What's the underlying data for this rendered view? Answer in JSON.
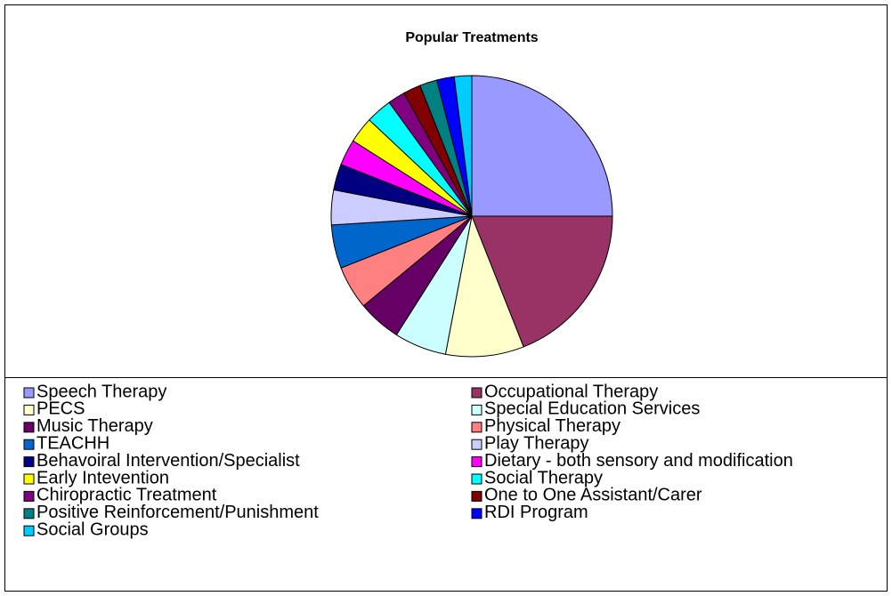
{
  "chart_data": {
    "type": "pie",
    "title": "Popular Treatments",
    "categories": [
      "Speech Therapy",
      "Occupational Therapy",
      "PECS",
      "Special Education Services",
      "Music Therapy",
      "Physical Therapy",
      "TEACHH",
      "Play Therapy",
      "Behavoiral Intervention/Specialist",
      "Dietary - both sensory and modification",
      "Early Intevention",
      "Social Therapy",
      "Chiropractic Treatment",
      "One to One Assistant/Carer",
      "Positive Reinforcement/Punishment",
      "RDI Program",
      "Social Groups"
    ],
    "values": [
      25,
      19,
      9,
      6,
      5,
      5,
      5,
      4,
      3,
      3,
      3,
      3,
      2,
      2,
      2,
      2,
      2
    ],
    "colors": [
      "#9999ff",
      "#993366",
      "#ffffcc",
      "#ccffff",
      "#660066",
      "#ff8080",
      "#0066cc",
      "#ccccff",
      "#000080",
      "#ff00ff",
      "#ffff00",
      "#00ffff",
      "#800080",
      "#800000",
      "#008080",
      "#0000ff",
      "#00ccff"
    ],
    "legend": "bottom"
  }
}
